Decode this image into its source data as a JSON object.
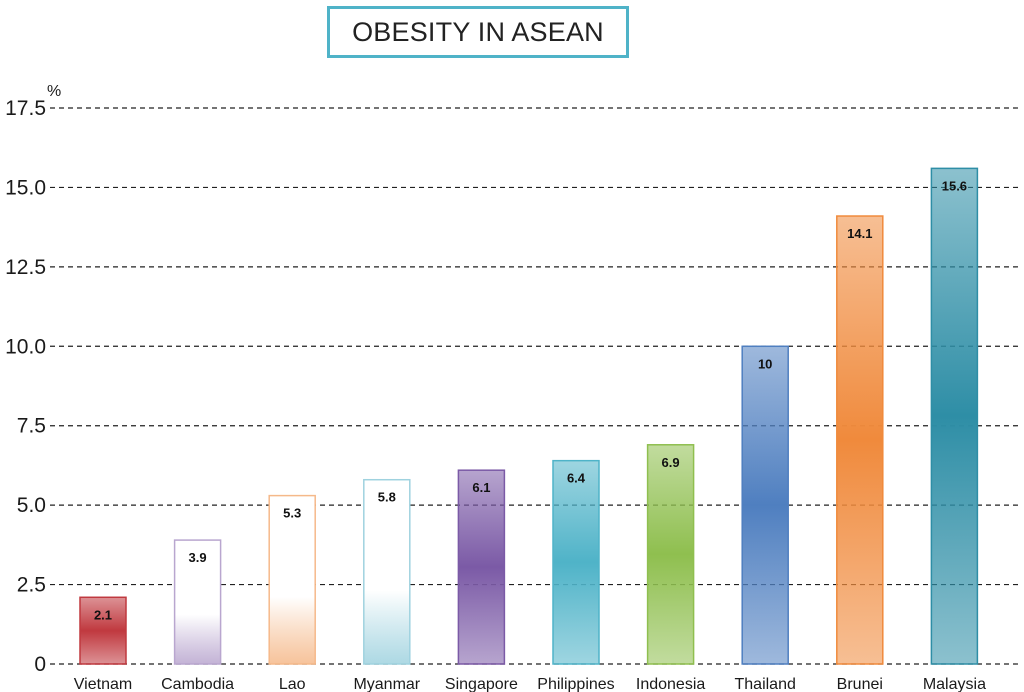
{
  "chart_data": {
    "type": "bar",
    "title": "OBESITY IN ASEAN",
    "ylabel": "%",
    "xlabel": "",
    "ylim": [
      0,
      17.5
    ],
    "yticks": [
      "0",
      "2.5",
      "5.0",
      "7.5",
      "10.0",
      "12.5",
      "15.0",
      "17.5"
    ],
    "grid": true,
    "categories": [
      "Vietnam",
      "Cambodia",
      "Lao",
      "Myanmar",
      "Singapore",
      "Philippines",
      "Indonesia",
      "Thailand",
      "Brunei",
      "Malaysia"
    ],
    "values": [
      2.1,
      3.9,
      5.3,
      5.8,
      6.1,
      6.4,
      6.9,
      10,
      14.1,
      15.6
    ],
    "value_labels": [
      "2.1",
      "3.9",
      "5.3",
      "5.8",
      "6.1",
      "6.4",
      "6.9",
      "10",
      "14.1",
      "15.6"
    ],
    "colors": [
      "#c0393f",
      "#b9a6cf",
      "#f5b98a",
      "#9fd2df",
      "#7b5aa6",
      "#4fb3c8",
      "#8fbf4f",
      "#4f7fc0",
      "#f08a3c",
      "#2e8ea6"
    ],
    "fill_styles": [
      "solid",
      "light",
      "light",
      "light",
      "solid",
      "solid",
      "solid",
      "solid",
      "solid",
      "solid"
    ]
  }
}
